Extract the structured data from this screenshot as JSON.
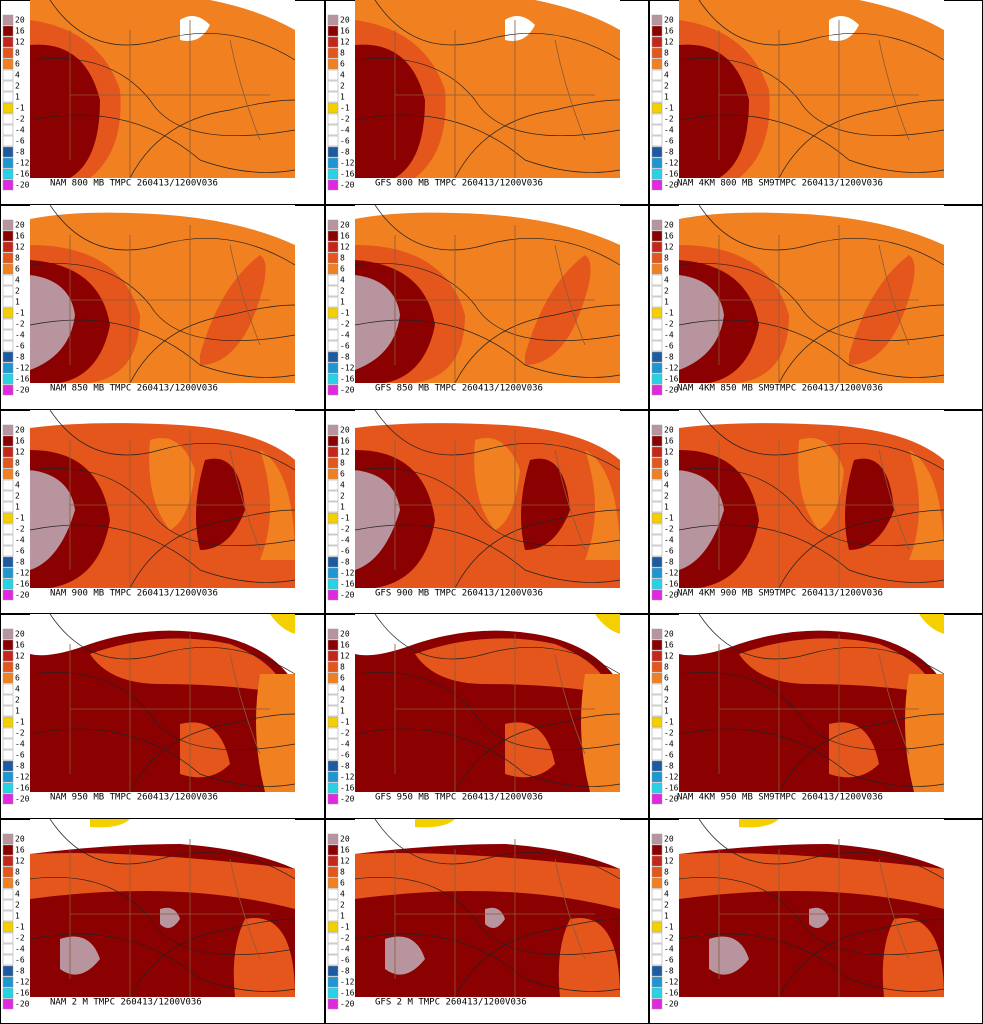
{
  "captions": [
    "NAM 800 MB TMPC 260413/1200V036",
    "GFS 800 MB TMPC 260413/1200V036",
    "NAM 4KM 800 MB SM9TMPC 260413/1200V036",
    "NAM 850 MB TMPC 260413/1200V036",
    "GFS 850 MB TMPC 260413/1200V036",
    "NAM 4KM 850 MB SM9TMPC 260413/1200V036",
    "NAM 900 MB TMPC 260413/1200V036",
    "GFS 900 MB TMPC 260413/1200V036",
    "NAM 4KM 900 MB SM9TMPC 260413/1200V036",
    "NAM 950 MB TMPC 260413/1200V036",
    "GFS 950 MB TMPC 260413/1200V036",
    "NAM 4KM 950 MB SM9TMPC 260413/1200V036",
    "NAM 2 M TMPC 260413/1200V036",
    "GFS 2 M TMPC 260413/1200V036"
  ],
  "legend": [
    {
      "label": "20",
      "color": "#b8959e"
    },
    {
      "label": "16",
      "color": "#8b0000"
    },
    {
      "label": "12",
      "color": "#c4261a"
    },
    {
      "label": "8",
      "color": "#e4561c"
    },
    {
      "label": "6",
      "color": "#f08020"
    },
    {
      "label": "4",
      "color": "#ffffff"
    },
    {
      "label": "2",
      "color": "#ffffff"
    },
    {
      "label": "1",
      "color": "#ffffff"
    },
    {
      "label": "-1",
      "color": "#f5d000"
    },
    {
      "label": "-2",
      "color": "#ffffff"
    },
    {
      "label": "-4",
      "color": "#ffffff"
    },
    {
      "label": "-6",
      "color": "#ffffff"
    },
    {
      "label": "-8",
      "color": "#1e5aa0"
    },
    {
      "label": "-12",
      "color": "#1e96d2"
    },
    {
      "label": "-16",
      "color": "#28d2e4"
    },
    {
      "label": "-20",
      "color": "#e028e0"
    }
  ]
}
